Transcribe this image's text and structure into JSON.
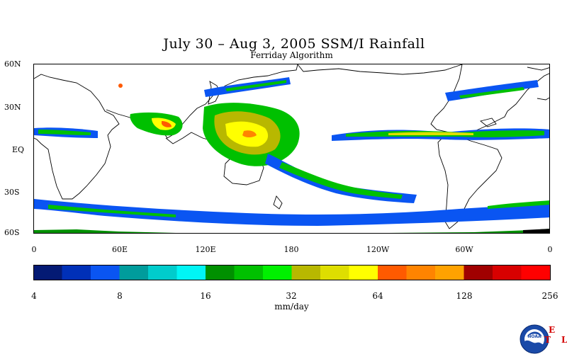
{
  "title": "July 30 – Aug 3, 2005 SSM/I Rainfall",
  "subtitle": "Ferriday Algorithm",
  "lat_labels": [
    "60N",
    "30N",
    "EQ",
    "30S",
    "60S"
  ],
  "lon_labels": [
    "0",
    "60E",
    "120E",
    "180",
    "120W",
    "60W",
    "0"
  ],
  "colorbar": {
    "tick_labels": [
      "4",
      "8",
      "16",
      "32",
      "64",
      "128",
      "256"
    ],
    "units": "mm/day",
    "colors": [
      "#041a74",
      "#0030b8",
      "#0a55f2",
      "#009c9c",
      "#00cccc",
      "#00f5f5",
      "#009000",
      "#00c000",
      "#00f000",
      "#b8b800",
      "#dede00",
      "#ffff00",
      "#ff5a00",
      "#ff8400",
      "#ffa200",
      "#a00000",
      "#d80000",
      "#ff0000"
    ]
  },
  "logo": {
    "agency": "NOAA",
    "lab_letters": [
      "E",
      "T",
      "L"
    ]
  },
  "chart_data": {
    "type": "heatmap",
    "title": "July 30 – Aug 3, 2005 SSM/I Rainfall",
    "subtitle": "Ferriday Algorithm",
    "units": "mm/day",
    "scale": "log2",
    "color_range": [
      4,
      256
    ],
    "lat_range": [
      -60,
      60
    ],
    "lon_range": [
      0,
      360
    ]
  }
}
